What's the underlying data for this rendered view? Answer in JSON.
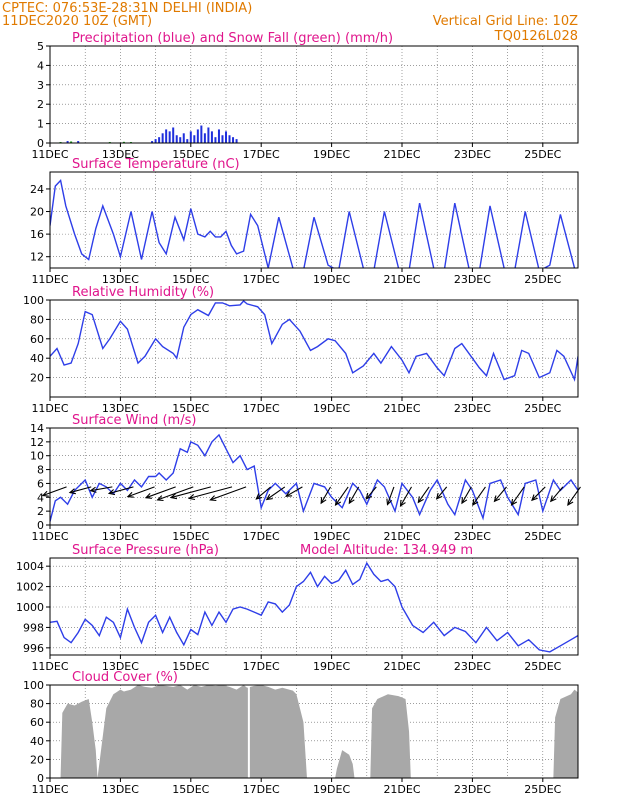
{
  "header": {
    "station": "CPTEC:   076:53E-28:31N   DELHI (INDIA)",
    "run": "11DEC2020 10Z (GMT)",
    "grid_note": "Vertical Grid Line: 10Z",
    "code": "TQ0126L028"
  },
  "colors": {
    "header": "#e07a00",
    "title": "#e0158c",
    "line": "#2e3ee8",
    "precip": "#1f2fdc",
    "snow": "#1aa01a",
    "cloud": "#a8a8a8",
    "arrow": "#000000"
  },
  "x_ticks": [
    "11DEC",
    "13DEC",
    "15DEC",
    "17DEC",
    "19DEC",
    "21DEC",
    "23DEC",
    "25DEC"
  ],
  "panels": [
    {
      "id": "precip",
      "title": "Precipitation (blue) and Snow Fall (green) (mm/h)",
      "yticks": [
        "0",
        "1",
        "2",
        "3",
        "4",
        "5"
      ]
    },
    {
      "id": "temp",
      "title": "Surface Temperature (nC)",
      "yticks": [
        "12",
        "16",
        "20",
        "24"
      ]
    },
    {
      "id": "rh",
      "title": "Relative Humidity (%)",
      "yticks": [
        "20",
        "40",
        "60",
        "80",
        "100"
      ]
    },
    {
      "id": "wind",
      "title": "Surface Wind (m/s)",
      "yticks": [
        "0",
        "2",
        "4",
        "6",
        "8",
        "10",
        "12",
        "14"
      ]
    },
    {
      "id": "press",
      "title": "Surface Pressure (hPa)",
      "subtitle": "Model Altitude: 134.949 m",
      "yticks": [
        "996",
        "998",
        "1000",
        "1002",
        "1004"
      ]
    },
    {
      "id": "cloud",
      "title": "Cloud Cover (%)",
      "yticks": [
        "0",
        "20",
        "40",
        "60",
        "80",
        "100"
      ]
    }
  ],
  "chart_data": [
    {
      "type": "bar",
      "title": "Precipitation (blue) and Snow Fall (green) (mm/h)",
      "x_unit": "days from 11DEC 00Z",
      "ylim": [
        0,
        5
      ],
      "series": [
        {
          "name": "Precipitation",
          "x": [
            0.5,
            0.8,
            2.9,
            3.0,
            3.1,
            3.2,
            3.3,
            3.4,
            3.5,
            3.6,
            3.7,
            3.8,
            3.9,
            4.0,
            4.1,
            4.2,
            4.3,
            4.4,
            4.5,
            4.6,
            4.7,
            4.8,
            4.9,
            5.0,
            5.1,
            5.2,
            5.3
          ],
          "values": [
            0.1,
            0.1,
            0.1,
            0.2,
            0.3,
            0.5,
            0.7,
            0.6,
            0.8,
            0.4,
            0.3,
            0.5,
            0.2,
            0.6,
            0.4,
            0.7,
            0.9,
            0.5,
            0.8,
            0.6,
            0.3,
            0.7,
            0.4,
            0.6,
            0.4,
            0.3,
            0.2
          ]
        },
        {
          "name": "Snow Fall",
          "x": [
            0.3,
            0.6,
            1.7,
            2.1,
            2.3
          ],
          "values": [
            0.05,
            0.08,
            0.05,
            0.06,
            0.05
          ]
        }
      ]
    },
    {
      "type": "line",
      "title": "Surface Temperature (nC)",
      "x_unit": "days from 11DEC 00Z",
      "ylim": [
        10,
        27
      ],
      "x": [
        0,
        0.15,
        0.3,
        0.45,
        0.7,
        0.9,
        1.1,
        1.3,
        1.5,
        1.8,
        2.0,
        2.3,
        2.6,
        2.9,
        3.1,
        3.3,
        3.55,
        3.8,
        4.0,
        4.2,
        4.4,
        4.55,
        4.7,
        4.85,
        5.0,
        5.15,
        5.3,
        5.5,
        5.7,
        5.9,
        6.2,
        6.5,
        6.9,
        7.2,
        7.5,
        7.9,
        8.2,
        8.5,
        8.9,
        9.2,
        9.5,
        9.9,
        10.2,
        10.5,
        10.9,
        11.2,
        11.5,
        11.9,
        12.2,
        12.5,
        12.9,
        13.2,
        13.5,
        13.9,
        14.2,
        14.5,
        14.9,
        15.0
      ],
      "values": [
        17.5,
        24.5,
        25.5,
        21,
        16,
        12.5,
        11.5,
        17,
        21,
        16,
        12,
        20,
        11.5,
        20,
        14.5,
        12.5,
        19,
        15,
        20.5,
        16,
        15.5,
        16.5,
        15.5,
        15.5,
        16.5,
        14,
        12.5,
        13,
        19.5,
        17.5,
        10,
        19,
        10,
        9.5,
        19,
        10.5,
        9.5,
        20,
        10,
        9.5,
        20,
        10,
        9.5,
        21.5,
        10,
        9.5,
        21.5,
        10,
        9.5,
        21,
        10,
        9.5,
        20,
        9.5,
        10.5,
        19.5,
        10,
        9.5
      ]
    },
    {
      "type": "line",
      "title": "Relative Humidity (%)",
      "x_unit": "days from 11DEC 00Z",
      "ylim": [
        0,
        100
      ],
      "x": [
        0,
        0.2,
        0.4,
        0.6,
        0.8,
        1.0,
        1.2,
        1.5,
        1.7,
        2.0,
        2.2,
        2.5,
        2.7,
        3.0,
        3.2,
        3.5,
        3.6,
        3.8,
        4.0,
        4.2,
        4.5,
        4.7,
        4.9,
        5.1,
        5.4,
        5.5,
        5.6,
        5.9,
        6.1,
        6.3,
        6.6,
        6.8,
        7.1,
        7.4,
        7.6,
        7.9,
        8.1,
        8.4,
        8.6,
        8.9,
        9.2,
        9.4,
        9.7,
        10.0,
        10.2,
        10.4,
        10.7,
        11.0,
        11.2,
        11.5,
        11.7,
        12.0,
        12.2,
        12.4,
        12.6,
        12.9,
        13.2,
        13.4,
        13.6,
        13.9,
        14.2,
        14.4,
        14.6,
        14.9,
        15.0
      ],
      "values": [
        42,
        50,
        33,
        35,
        55,
        88,
        85,
        50,
        60,
        78,
        70,
        35,
        42,
        60,
        52,
        45,
        40,
        72,
        85,
        90,
        84,
        97,
        97,
        94,
        95,
        99,
        96,
        93,
        85,
        55,
        75,
        80,
        68,
        48,
        52,
        60,
        58,
        45,
        25,
        32,
        45,
        35,
        52,
        38,
        25,
        42,
        45,
        30,
        22,
        50,
        55,
        40,
        30,
        22,
        45,
        18,
        22,
        48,
        45,
        20,
        25,
        48,
        42,
        18,
        42
      ]
    },
    {
      "type": "line",
      "title": "Surface Wind (m/s)",
      "x_unit": "days from 11DEC 00Z",
      "ylim": [
        0,
        14
      ],
      "x": [
        0,
        0.15,
        0.3,
        0.5,
        0.7,
        1.0,
        1.2,
        1.4,
        1.6,
        1.8,
        2.0,
        2.2,
        2.4,
        2.6,
        2.8,
        3.0,
        3.1,
        3.3,
        3.5,
        3.7,
        3.9,
        4.0,
        4.2,
        4.4,
        4.6,
        4.8,
        5.0,
        5.2,
        5.4,
        5.6,
        5.8,
        6.0,
        6.2,
        6.4,
        6.7,
        7.0,
        7.2,
        7.5,
        7.8,
        8.0,
        8.3,
        8.6,
        8.8,
        9.0,
        9.3,
        9.5,
        9.8,
        10.0,
        10.3,
        10.5,
        10.8,
        11.0,
        11.3,
        11.5,
        11.8,
        12.0,
        12.3,
        12.5,
        12.8,
        13.0,
        13.3,
        13.5,
        13.8,
        14.0,
        14.3,
        14.5,
        14.8,
        15.0
      ],
      "values": [
        0.5,
        3.5,
        4,
        3,
        5,
        6.5,
        4,
        6,
        5.5,
        4.5,
        6,
        5,
        6.5,
        5.5,
        7,
        7,
        7.5,
        6.5,
        7.5,
        11,
        10.5,
        12,
        11.5,
        10,
        12,
        13,
        11,
        9,
        10,
        8,
        8.5,
        2.5,
        5,
        6,
        4.5,
        6,
        2,
        6,
        5.5,
        4,
        2.5,
        6,
        5,
        3,
        6.5,
        5.5,
        2,
        6,
        4,
        1.5,
        5,
        6.5,
        3,
        1.5,
        6.5,
        5,
        1,
        6,
        6.5,
        4,
        1.5,
        6,
        6.5,
        2,
        6.5,
        5,
        6.5,
        5
      ]
    },
    {
      "type": "line",
      "title": "Surface Pressure (hPa)",
      "x_unit": "days from 11DEC 00Z",
      "ylim": [
        995.3,
        1004.8
      ],
      "x": [
        0,
        0.2,
        0.4,
        0.6,
        0.8,
        1.0,
        1.2,
        1.4,
        1.6,
        1.8,
        2.0,
        2.2,
        2.4,
        2.6,
        2.8,
        3.0,
        3.2,
        3.4,
        3.6,
        3.8,
        4.0,
        4.2,
        4.4,
        4.6,
        4.8,
        5.0,
        5.2,
        5.4,
        5.6,
        5.8,
        6.0,
        6.2,
        6.4,
        6.6,
        6.8,
        7.0,
        7.2,
        7.4,
        7.6,
        7.8,
        8.0,
        8.2,
        8.4,
        8.6,
        8.8,
        9.0,
        9.2,
        9.4,
        9.6,
        9.8,
        10.0,
        10.3,
        10.6,
        10.9,
        11.2,
        11.5,
        11.8,
        12.1,
        12.4,
        12.7,
        13.0,
        13.3,
        13.6,
        13.9,
        14.2,
        14.5,
        14.8,
        15.0
      ],
      "values": [
        998.5,
        998.6,
        997,
        996.5,
        997.5,
        998.8,
        998.2,
        997.2,
        999,
        998.5,
        997,
        999.8,
        998,
        996.5,
        998.5,
        999.2,
        997.5,
        999,
        997.5,
        996.3,
        997.8,
        997.3,
        999.5,
        998.2,
        999.5,
        998.5,
        999.8,
        1000,
        999.8,
        999.5,
        999.2,
        1000.5,
        1000.3,
        999.5,
        1000.2,
        1002,
        1002.5,
        1003.4,
        1002,
        1003,
        1002.3,
        1002.6,
        1003.6,
        1002.2,
        1002.7,
        1004.3,
        1003.2,
        1002.5,
        1002.7,
        1002,
        1000,
        998.2,
        997.5,
        998.5,
        997.2,
        998,
        997.6,
        996.5,
        998,
        996.7,
        997.5,
        996.2,
        996.8,
        995.8,
        995.6,
        996.2,
        996.8,
        997.2
      ]
    },
    {
      "type": "area",
      "title": "Cloud Cover (%)",
      "x_unit": "days from 11DEC 00Z",
      "ylim": [
        0,
        100
      ],
      "x": [
        0.3,
        0.35,
        0.5,
        0.7,
        0.9,
        1.1,
        1.2,
        1.3,
        1.35,
        1.6,
        1.8,
        2.0,
        2.1,
        2.3,
        2.5,
        2.7,
        2.9,
        3.1,
        3.3,
        3.5,
        3.7,
        3.9,
        4.1,
        4.3,
        4.5,
        4.7,
        4.9,
        5.1,
        5.3,
        5.5,
        5.6,
        5.8,
        6.0,
        6.2,
        6.4,
        6.6,
        6.9,
        7.0,
        7.2,
        7.25,
        7.3,
        8.1,
        8.15,
        8.3,
        8.5,
        8.6,
        8.65,
        9.1,
        9.15,
        9.3,
        9.6,
        9.9,
        10.1,
        10.2,
        10.25,
        14.3,
        14.35,
        14.5,
        14.8,
        14.9,
        15.0
      ],
      "values": [
        0,
        70,
        80,
        78,
        82,
        85,
        60,
        30,
        0,
        75,
        90,
        95,
        93,
        95,
        100,
        98,
        97,
        100,
        99,
        98,
        100,
        95,
        100,
        98,
        100,
        99,
        100,
        98,
        95,
        100,
        97,
        99,
        100,
        98,
        95,
        97,
        94,
        90,
        60,
        30,
        0,
        0,
        10,
        30,
        25,
        15,
        0,
        0,
        75,
        85,
        90,
        88,
        85,
        50,
        0,
        0,
        65,
        85,
        90,
        95,
        92
      ]
    }
  ],
  "wind_arrows": {
    "x": [
      0.3,
      1.0,
      1.6,
      2.2,
      2.8,
      3.4,
      3.9,
      4.4,
      5.0,
      5.4,
      6.1,
      6.5,
      7.0,
      7.8,
      8.3,
      8.6,
      9.1,
      9.6,
      10.1,
      10.6,
      11.1,
      11.8,
      12.2,
      12.8,
      13.3,
      13.9,
      14.4,
      14.9
    ],
    "angle_deg": [
      200,
      195,
      190,
      195,
      200,
      200,
      200,
      195,
      195,
      200,
      220,
      215,
      210,
      240,
      235,
      240,
      230,
      250,
      240,
      235,
      230,
      240,
      235,
      230,
      235,
      225,
      230,
      235
    ],
    "speed": [
      6,
      5,
      5,
      6,
      7,
      8,
      10,
      11,
      12,
      10,
      4,
      5,
      4,
      4,
      5,
      4,
      3,
      4,
      5,
      4,
      3,
      4,
      5,
      4,
      5,
      4,
      4,
      5
    ]
  }
}
